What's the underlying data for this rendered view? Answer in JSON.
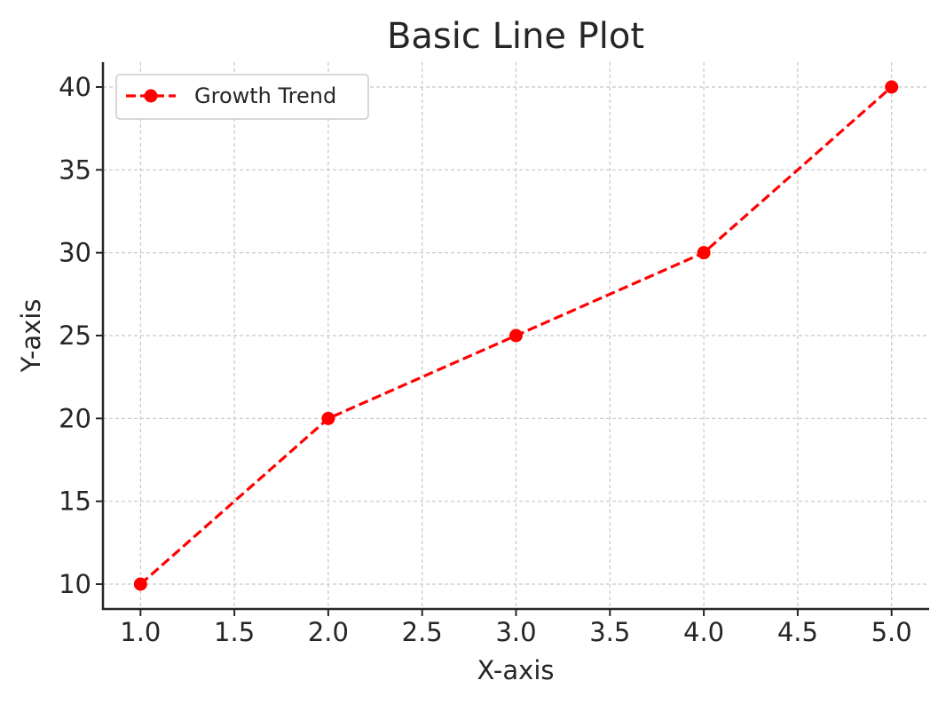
{
  "chart_data": {
    "type": "line",
    "title": "Basic Line Plot",
    "xlabel": "X-axis",
    "ylabel": "Y-axis",
    "xlim": [
      0.8,
      5.2
    ],
    "ylim": [
      8.5,
      41.5
    ],
    "x_ticks": [
      1.0,
      1.5,
      2.0,
      2.5,
      3.0,
      3.5,
      4.0,
      4.5,
      5.0
    ],
    "x_tick_labels": [
      "1.0",
      "1.5",
      "2.0",
      "2.5",
      "3.0",
      "3.5",
      "4.0",
      "4.5",
      "5.0"
    ],
    "y_ticks": [
      10,
      15,
      20,
      25,
      30,
      35,
      40
    ],
    "y_tick_labels": [
      "10",
      "15",
      "20",
      "25",
      "30",
      "35",
      "40"
    ],
    "grid": true,
    "legend_position": "top-left",
    "series": [
      {
        "name": "Growth Trend",
        "x": [
          1,
          2,
          3,
          4,
          5
        ],
        "y": [
          10,
          20,
          25,
          30,
          40
        ],
        "color": "#ff0000",
        "line_style": "dashed",
        "marker": "circle"
      }
    ]
  }
}
